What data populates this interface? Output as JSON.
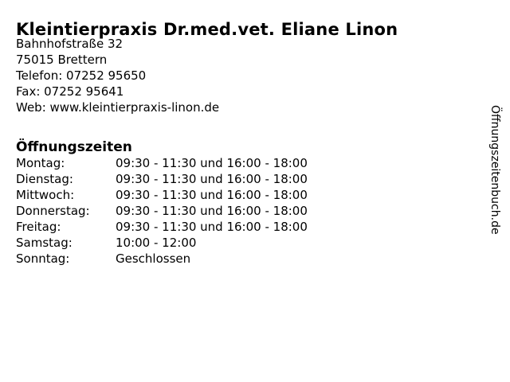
{
  "header": {
    "title": "Kleintierpraxis Dr.med.vet. Eliane Linon"
  },
  "contact": {
    "street": "Bahnhofstraße 32",
    "city": "75015 Brettern",
    "phone": "Telefon: 07252 95650",
    "fax": "Fax: 07252 95641",
    "web": "Web: www.kleintierpraxis-linon.de"
  },
  "hours": {
    "heading": "Öffnungszeiten",
    "rows": [
      {
        "day": "Montag:",
        "time": "09:30 - 11:30 und 16:00 - 18:00"
      },
      {
        "day": "Dienstag:",
        "time": "09:30 - 11:30 und 16:00 - 18:00"
      },
      {
        "day": "Mittwoch:",
        "time": "09:30 - 11:30 und 16:00 - 18:00"
      },
      {
        "day": "Donnerstag:",
        "time": "09:30 - 11:30 und 16:00 - 18:00"
      },
      {
        "day": "Freitag:",
        "time": "09:30 - 11:30 und 16:00 - 18:00"
      },
      {
        "day": "Samstag:",
        "time": "10:00 - 12:00"
      },
      {
        "day": "Sonntag:",
        "time": "Geschlossen"
      }
    ]
  },
  "watermark": {
    "text": "Öffnungszeitenbuch.de"
  },
  "colors": {
    "text": "#000000",
    "background": "#ffffff"
  }
}
